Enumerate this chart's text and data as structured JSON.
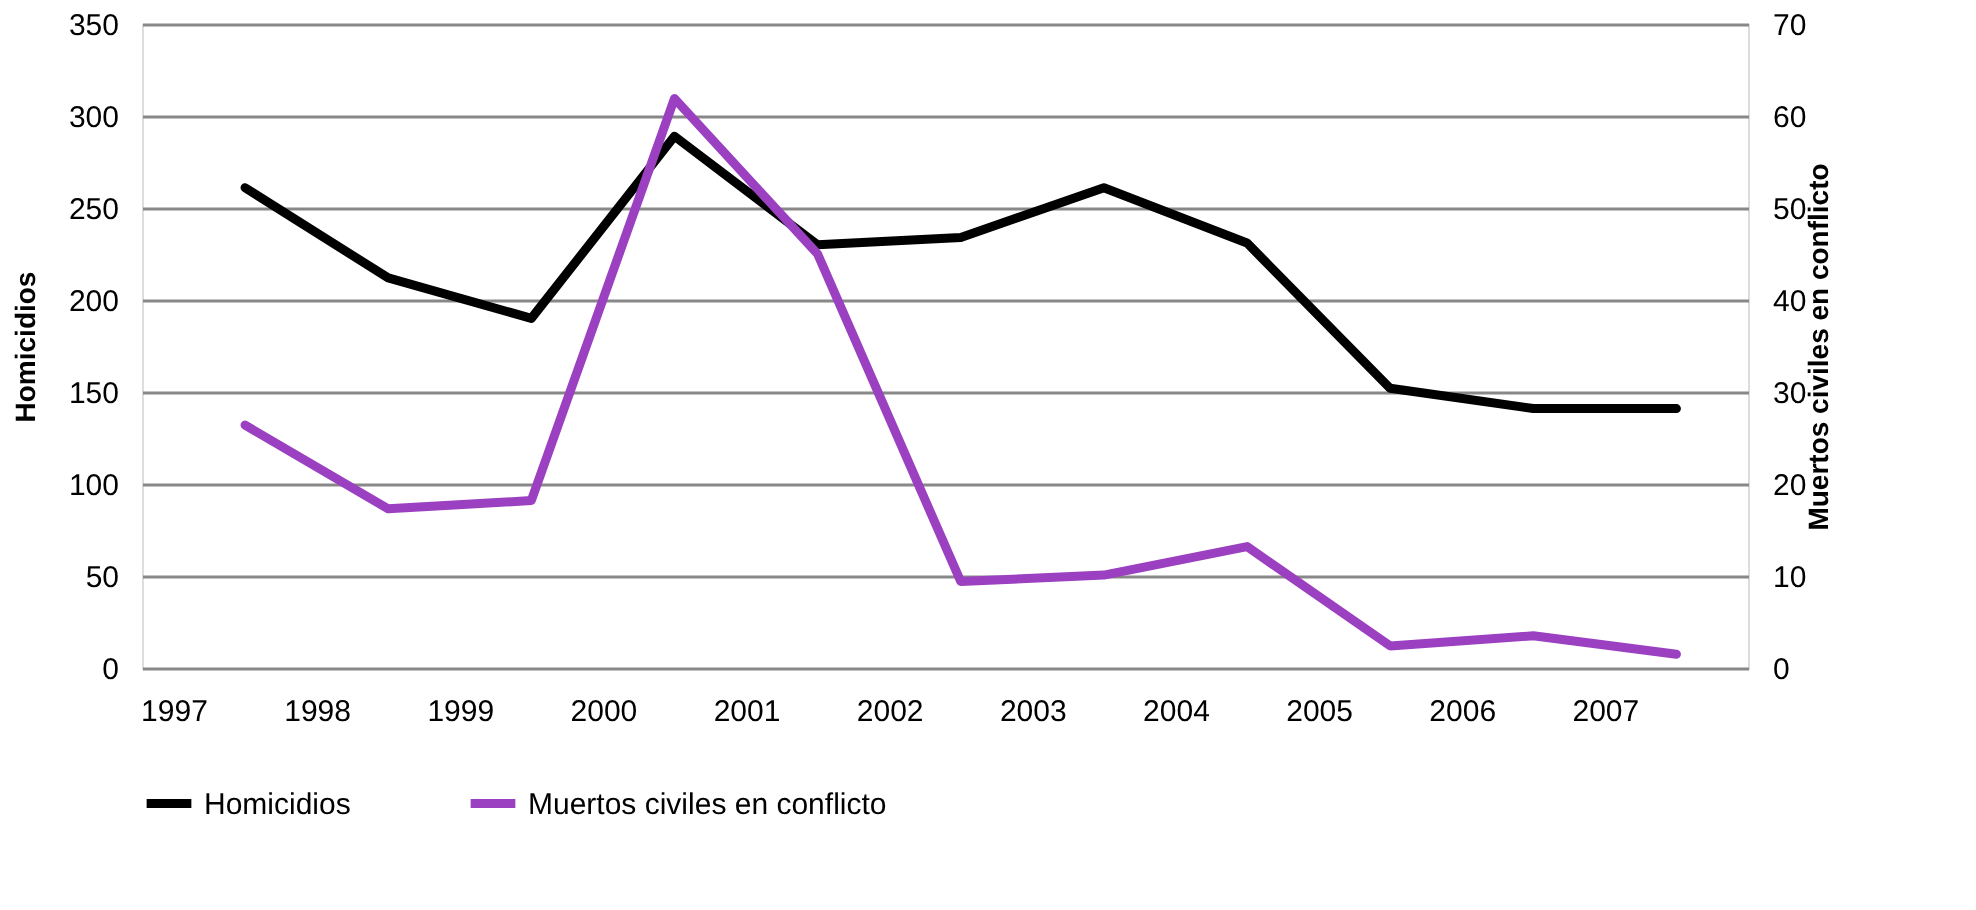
{
  "chart_data": {
    "type": "line",
    "x": [
      1997.5,
      1998.5,
      1999.5,
      2000.5,
      2001.5,
      2002.5,
      2003.5,
      2004.5,
      2005.5,
      2006.5,
      2007.5
    ],
    "series": [
      {
        "name": "Homicidios",
        "color": "#000000",
        "values": [
          261,
          212,
          190,
          289,
          230,
          234,
          261,
          231,
          152,
          141,
          141
        ]
      },
      {
        "name": "Muertos civiles en conflicto",
        "color": "#9b40c0",
        "axis": "y2",
        "values": [
          26.4,
          17.3,
          18.2,
          61.9,
          45,
          9.4,
          10.1,
          13.2,
          2.4,
          3.5,
          1.5
        ]
      }
    ],
    "xlim": [
      1996.78,
      2008.0
    ],
    "xticks": [
      1997,
      1998,
      1999,
      2000,
      2001,
      2002,
      2003,
      2004,
      2005,
      2006,
      2007
    ],
    "ylim": [
      0,
      350
    ],
    "yticks": [
      0,
      50,
      100,
      150,
      200,
      250,
      300,
      350
    ],
    "y2lim": [
      0,
      70
    ],
    "y2ticks": [
      0,
      10,
      20,
      30,
      40,
      50,
      60,
      70
    ],
    "ylabel": "Homicidios",
    "y2label": "Muertos civiles en conflicto",
    "grid": "y",
    "legend": "bottom"
  }
}
